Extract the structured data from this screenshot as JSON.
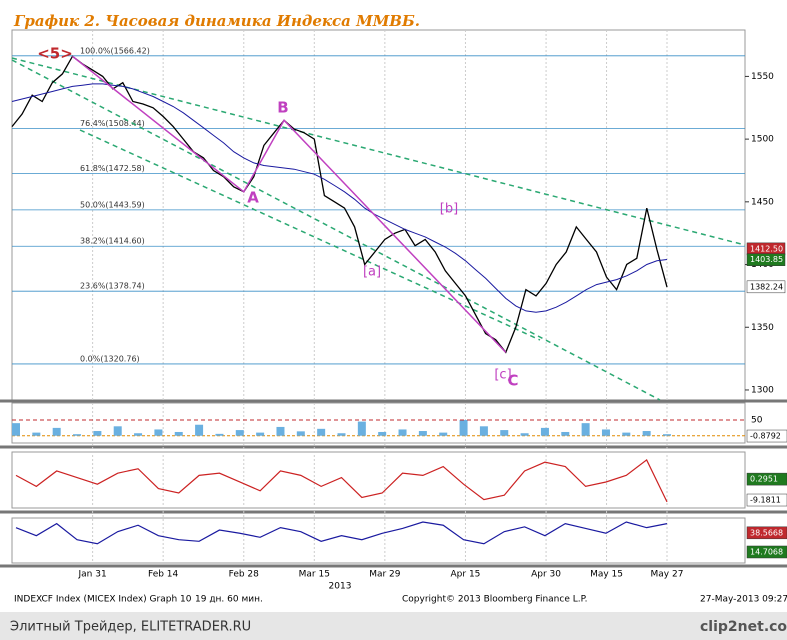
{
  "chart_data": [
    {
      "type": "line",
      "title": "График 2.   Часовая динамика Индекса ММВБ.",
      "categories": [
        null,
        null,
        null,
        null,
        null,
        null,
        null,
        null,
        "Jan 31",
        null,
        null,
        null,
        null,
        null,
        null,
        "Feb 14",
        null,
        null,
        null,
        null,
        null,
        null,
        null,
        "Feb 28",
        null,
        null,
        null,
        null,
        null,
        null,
        "Mar 15",
        null,
        null,
        null,
        null,
        null,
        null,
        "Mar 29",
        null,
        null,
        null,
        null,
        null,
        null,
        null,
        "Apr 15",
        null,
        null,
        null,
        null,
        null,
        null,
        null,
        "Apr 30",
        null,
        null,
        null,
        null,
        null,
        "May 15",
        null,
        null,
        null,
        null,
        null,
        "May 27"
      ],
      "x_label": "2013",
      "series": [
        {
          "color": "#000000",
          "values": [
            1510,
            1520,
            1535,
            1530,
            1545,
            1552,
            1566,
            1560,
            1555,
            1550,
            1540,
            1545,
            1530,
            1528,
            1525,
            1518,
            1510,
            1500,
            1490,
            1485,
            1475,
            1470,
            1462,
            1458,
            1470,
            1495,
            1505,
            1515,
            1508,
            1505,
            1500,
            1455,
            1450,
            1445,
            1430,
            1400,
            1410,
            1420,
            1425,
            1428,
            1415,
            1420,
            1410,
            1395,
            1385,
            1375,
            1360,
            1345,
            1340,
            1330,
            1350,
            1380,
            1375,
            1385,
            1400,
            1410,
            1430,
            1420,
            1410,
            1390,
            1380,
            1400,
            1405,
            1445,
            1412,
            1382
          ]
        },
        {
          "color": "#1a1aa0",
          "values": [
            1530,
            1532,
            1534,
            1536,
            1538,
            1540,
            1542,
            1543,
            1544,
            1544,
            1543,
            1542,
            1540,
            1537,
            1534,
            1530,
            1526,
            1521,
            1515,
            1509,
            1503,
            1497,
            1490,
            1485,
            1481,
            1479,
            1478,
            1477,
            1476,
            1474,
            1472,
            1468,
            1463,
            1458,
            1452,
            1445,
            1440,
            1436,
            1432,
            1428,
            1425,
            1422,
            1418,
            1414,
            1409,
            1403,
            1396,
            1389,
            1381,
            1373,
            1367,
            1363,
            1362,
            1363,
            1366,
            1370,
            1375,
            1380,
            1384,
            1386,
            1388,
            1391,
            1395,
            1400,
            1403,
            1404
          ]
        }
      ],
      "ylim": [
        1292,
        1587
      ],
      "yticks": [
        1300,
        1350,
        1400,
        1450,
        1500,
        1550
      ],
      "fib_levels": [
        {
          "value": 1566.42,
          "label": "100.0%(1566.42)"
        },
        {
          "value": 1508.44,
          "label": "76.4%(1508.44)"
        },
        {
          "value": 1472.58,
          "label": "61.8%(1472.58)"
        },
        {
          "value": 1443.59,
          "label": "50.0%(1443.59)"
        },
        {
          "value": 1414.6,
          "label": "38.2%(1414.60)"
        },
        {
          "value": 1378.74,
          "label": "23.6%(1378.74)"
        },
        {
          "value": 1320.76,
          "label": "0.0%(1320.76)"
        }
      ],
      "price_tags": [
        {
          "value": 1412.5,
          "label": "1412.50",
          "color": "#c0282d"
        },
        {
          "value": 1403.85,
          "label": "1403.85",
          "color": "#1f7a1f"
        },
        {
          "value": 1382.24,
          "label": "1382.24",
          "color": "#ffffff"
        }
      ],
      "annotations": [
        "<5>",
        "B",
        "A",
        "[b]",
        "[a]",
        "[c]",
        "C"
      ]
    },
    {
      "type": "bar",
      "color": "#6ab0e0",
      "values": [
        40,
        10,
        25,
        5,
        15,
        30,
        8,
        20,
        12,
        35,
        6,
        18,
        10,
        28,
        14,
        22,
        8,
        45,
        12,
        20,
        15,
        10,
        50,
        30,
        18,
        8,
        25,
        12,
        40,
        20,
        10,
        15,
        5
      ],
      "ylim": [
        -23,
        104
      ],
      "yticks": [
        50
      ],
      "last_value": -0.8792
    },
    {
      "type": "line",
      "color": "#cc2222",
      "values": [
        2,
        -3,
        4,
        1,
        -2,
        3,
        5,
        -4,
        -6,
        2,
        3,
        -1,
        -5,
        4,
        2,
        -3,
        1,
        -8,
        -6,
        3,
        2,
        6,
        -2,
        -9,
        -7,
        4,
        8,
        6,
        -3,
        -1,
        2,
        9,
        -10
      ],
      "ylim": [
        -12.8,
        12.6
      ],
      "tags": [
        {
          "value": 0.2951,
          "color": "#1f7a1f"
        },
        {
          "value": -9.1811,
          "color": "#ffffff"
        }
      ]
    },
    {
      "type": "line",
      "color": "#1a1aa0",
      "values": [
        45,
        35,
        50,
        30,
        25,
        40,
        48,
        35,
        30,
        28,
        42,
        38,
        33,
        45,
        40,
        28,
        35,
        30,
        38,
        44,
        52,
        48,
        30,
        25,
        40,
        46,
        35,
        50,
        44,
        38,
        52,
        45,
        50
      ],
      "ylim": [
        1,
        57
      ],
      "tags": [
        {
          "value": 38.5668,
          "color": "#c0282d"
        },
        {
          "value": 14.7068,
          "color": "#1f7a1f"
        }
      ]
    }
  ],
  "footer": {
    "left": "INDEXCF Index (MICEX Index) Graph 10",
    "period": "19 дн. 60 мин.",
    "copyright": "Copyright© 2013 Bloomberg Finance L.P.",
    "date": "27-May-2013 09:27:59"
  },
  "watermark": {
    "left": "Элитный Трейдер, ELITETRADER.RU",
    "right": "clip2net.com"
  }
}
